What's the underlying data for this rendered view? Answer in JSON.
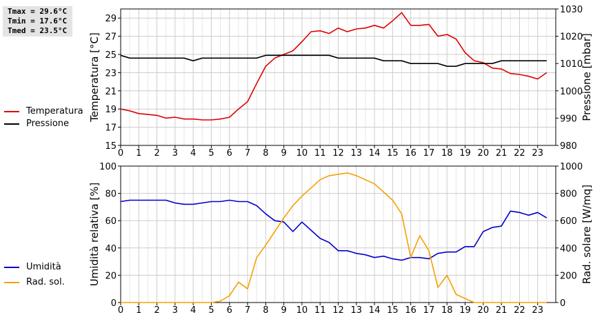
{
  "stats": {
    "tmax": "Tmax = 29.6°C",
    "tmin": "Tmin = 17.6°C",
    "tmed": "Tmed = 23.5°C"
  },
  "legend_top": [
    {
      "label": "Temperatura",
      "color": "#dd0000"
    },
    {
      "label": "Pressione",
      "color": "#000000"
    }
  ],
  "legend_bottom": [
    {
      "label": "Umidità",
      "color": "#0000cc"
    },
    {
      "label": "Rad. sol.",
      "color": "#f5a000"
    }
  ],
  "chart_data": [
    {
      "type": "line",
      "ylabel": "Temperatura [°C]",
      "y2label": "Pressione [mbar]",
      "xlim": [
        0,
        24
      ],
      "ylim": [
        15,
        30
      ],
      "y2lim": [
        980,
        1030
      ],
      "xticks": [
        "0",
        "1",
        "2",
        "3",
        "4",
        "5",
        "6",
        "7",
        "8",
        "9",
        "10",
        "11",
        "12",
        "13",
        "14",
        "15",
        "16",
        "17",
        "18",
        "19",
        "20",
        "21",
        "22",
        "23"
      ],
      "yticks": [
        "15",
        "17",
        "19",
        "21",
        "23",
        "25",
        "27",
        "29"
      ],
      "y2ticks": [
        "980",
        "990",
        "1000",
        "1010",
        "1020",
        "1030"
      ],
      "grid": true,
      "series": [
        {
          "name": "Temperatura",
          "axis": "left",
          "color": "#dd0000",
          "x": [
            0,
            0.5,
            1,
            1.5,
            2,
            2.5,
            3,
            3.5,
            4,
            4.5,
            5,
            5.5,
            6,
            6.5,
            7,
            7.5,
            8,
            8.5,
            9,
            9.5,
            10,
            10.5,
            11,
            11.5,
            12,
            12.5,
            13,
            13.5,
            14,
            14.5,
            15,
            15.5,
            16,
            16.5,
            17,
            17.5,
            18,
            18.5,
            19,
            19.5,
            20,
            20.5,
            21,
            21.5,
            22,
            22.5,
            23,
            23.5
          ],
          "y": [
            19.0,
            18.8,
            18.5,
            18.4,
            18.3,
            18.0,
            18.1,
            17.9,
            17.9,
            17.8,
            17.8,
            17.9,
            18.1,
            19.0,
            19.8,
            21.8,
            23.7,
            24.6,
            25.0,
            25.4,
            26.4,
            27.5,
            27.6,
            27.3,
            27.9,
            27.5,
            27.8,
            27.9,
            28.2,
            27.9,
            28.7,
            29.6,
            28.2,
            28.2,
            28.3,
            27.0,
            27.2,
            26.7,
            25.2,
            24.3,
            24.1,
            23.5,
            23.4,
            22.9,
            22.8,
            22.6,
            22.3,
            23.0
          ]
        },
        {
          "name": "Pressione",
          "axis": "right",
          "color": "#000000",
          "x": [
            0,
            0.5,
            1,
            1.5,
            2,
            2.5,
            3,
            3.5,
            4,
            4.5,
            5,
            5.5,
            6,
            6.5,
            7,
            7.5,
            8,
            8.5,
            9,
            9.5,
            10,
            10.5,
            11,
            11.5,
            12,
            12.5,
            13,
            13.5,
            14,
            14.5,
            15,
            15.5,
            16,
            16.5,
            17,
            17.5,
            18,
            18.5,
            19,
            19.5,
            20,
            20.5,
            21,
            21.5,
            22,
            22.5,
            23,
            23.5
          ],
          "y": [
            1013,
            1012,
            1012,
            1012,
            1012,
            1012,
            1012,
            1012,
            1011,
            1012,
            1012,
            1012,
            1012,
            1012,
            1012,
            1012,
            1013,
            1013,
            1013,
            1013,
            1013,
            1013,
            1013,
            1013,
            1012,
            1012,
            1012,
            1012,
            1012,
            1011,
            1011,
            1011,
            1010,
            1010,
            1010,
            1010,
            1009,
            1009,
            1010,
            1010,
            1010,
            1010,
            1011,
            1011,
            1011,
            1011,
            1011,
            1011
          ]
        }
      ]
    },
    {
      "type": "line",
      "ylabel": "Umidità relativa [%]",
      "y2label": "Rad. solare [W/mq]",
      "xlim": [
        0,
        24
      ],
      "ylim": [
        0,
        100
      ],
      "y2lim": [
        0,
        1000
      ],
      "xticks": [
        "0",
        "1",
        "2",
        "3",
        "4",
        "5",
        "6",
        "7",
        "8",
        "9",
        "10",
        "11",
        "12",
        "13",
        "14",
        "15",
        "16",
        "17",
        "18",
        "19",
        "20",
        "21",
        "22",
        "23"
      ],
      "yticks": [
        "0",
        "20",
        "40",
        "60",
        "80",
        "100"
      ],
      "y2ticks": [
        "0",
        "200",
        "400",
        "600",
        "800",
        "1000"
      ],
      "grid": true,
      "series": [
        {
          "name": "Umidità",
          "axis": "left",
          "color": "#0000cc",
          "x": [
            0,
            0.5,
            1,
            1.5,
            2,
            2.5,
            3,
            3.5,
            4,
            4.5,
            5,
            5.5,
            6,
            6.5,
            7,
            7.5,
            8,
            8.5,
            9,
            9.5,
            10,
            10.5,
            11,
            11.5,
            12,
            12.5,
            13,
            13.5,
            14,
            14.5,
            15,
            15.5,
            16,
            16.5,
            17,
            17.5,
            18,
            18.5,
            19,
            19.5,
            20,
            20.5,
            21,
            21.5,
            22,
            22.5,
            23,
            23.5
          ],
          "y": [
            74,
            75,
            75,
            75,
            75,
            75,
            73,
            72,
            72,
            73,
            74,
            74,
            75,
            74,
            74,
            71,
            65,
            60,
            59,
            52,
            59,
            53,
            47,
            44,
            38,
            38,
            36,
            35,
            33,
            34,
            32,
            31,
            33,
            33,
            32,
            36,
            37,
            37,
            41,
            41,
            52,
            55,
            56,
            67,
            66,
            64,
            66,
            62
          ]
        },
        {
          "name": "Rad. sol.",
          "axis": "right",
          "color": "#f5a000",
          "x": [
            0,
            0.5,
            1,
            1.5,
            2,
            2.5,
            3,
            3.5,
            4,
            4.5,
            5,
            5.5,
            6,
            6.5,
            7,
            7.5,
            8,
            8.5,
            9,
            9.5,
            10,
            10.5,
            11,
            11.5,
            12,
            12.5,
            13,
            13.5,
            14,
            14.5,
            15,
            15.5,
            16,
            16.5,
            17,
            17.5,
            18,
            18.5,
            19,
            19.5,
            20,
            20.5,
            21,
            21.5,
            22,
            22.5,
            23,
            23.5
          ],
          "y": [
            0,
            0,
            0,
            0,
            0,
            0,
            0,
            0,
            0,
            0,
            0,
            10,
            50,
            150,
            100,
            330,
            420,
            520,
            620,
            710,
            780,
            840,
            900,
            930,
            940,
            950,
            930,
            900,
            870,
            810,
            750,
            650,
            330,
            490,
            380,
            110,
            200,
            60,
            30,
            0,
            0,
            0,
            0,
            0,
            0,
            0,
            0,
            0
          ]
        }
      ]
    }
  ]
}
